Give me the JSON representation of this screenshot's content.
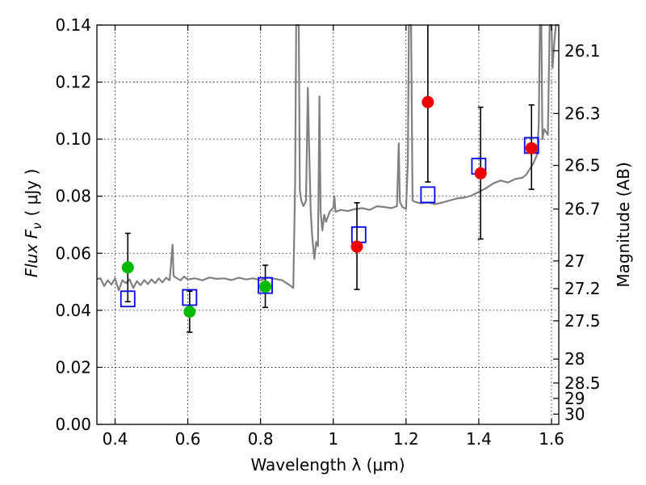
{
  "chart_data": {
    "type": "scatter",
    "xlabel": "Wavelength  λ (μm)",
    "ylabel": "Flux  F",
    "ylabel_sub": "ν",
    "ylabel_unit": "( μJy )",
    "y2label": "Magnitude (AB)",
    "xlim": [
      0.35,
      1.62
    ],
    "ylim": [
      0.0,
      0.14
    ],
    "grid": true,
    "x_ticks": [
      0.4,
      0.6,
      0.8,
      1.0,
      1.2,
      1.4,
      1.6
    ],
    "x_tick_labels": [
      "0.4",
      "0.6",
      "0.8",
      "1",
      "1.2",
      "1.4",
      "1.6"
    ],
    "y_ticks": [
      0.0,
      0.02,
      0.04,
      0.06,
      0.08,
      0.1,
      0.12,
      0.14
    ],
    "y_tick_labels": [
      "0.00",
      "0.02",
      "0.04",
      "0.06",
      "0.08",
      "0.10",
      "0.12",
      "0.14"
    ],
    "mag_ticks": [
      {
        "label": "26.1",
        "flux": 0.131
      },
      {
        "label": "26.3",
        "flux": 0.109
      },
      {
        "label": "26.5",
        "flux": 0.0908
      },
      {
        "label": "26.7",
        "flux": 0.0755
      },
      {
        "label": "27",
        "flux": 0.0573
      },
      {
        "label": "27.2",
        "flux": 0.0476
      },
      {
        "label": "27.5",
        "flux": 0.0363
      },
      {
        "label": "28",
        "flux": 0.0229
      },
      {
        "label": "28.5",
        "flux": 0.0145
      },
      {
        "label": "29",
        "flux": 0.0091
      },
      {
        "label": "30",
        "flux": 0.0036
      }
    ],
    "model_spectrum": {
      "color": "#808080",
      "points": [
        [
          0.35,
          0.051
        ],
        [
          0.36,
          0.0512
        ],
        [
          0.37,
          0.0485
        ],
        [
          0.38,
          0.0505
        ],
        [
          0.39,
          0.049
        ],
        [
          0.4,
          0.0512
        ],
        [
          0.41,
          0.047
        ],
        [
          0.42,
          0.0505
        ],
        [
          0.43,
          0.0495
        ],
        [
          0.44,
          0.0508
        ],
        [
          0.45,
          0.0478
        ],
        [
          0.46,
          0.0502
        ],
        [
          0.47,
          0.0488
        ],
        [
          0.48,
          0.0506
        ],
        [
          0.49,
          0.0492
        ],
        [
          0.5,
          0.0508
        ],
        [
          0.51,
          0.0495
        ],
        [
          0.52,
          0.0512
        ],
        [
          0.53,
          0.0498
        ],
        [
          0.54,
          0.0514
        ],
        [
          0.55,
          0.0505
        ],
        [
          0.555,
          0.058
        ],
        [
          0.558,
          0.063
        ],
        [
          0.561,
          0.052
        ],
        [
          0.57,
          0.0512
        ],
        [
          0.58,
          0.0505
        ],
        [
          0.59,
          0.0518
        ],
        [
          0.6,
          0.0508
        ],
        [
          0.62,
          0.0512
        ],
        [
          0.64,
          0.0505
        ],
        [
          0.66,
          0.0515
        ],
        [
          0.68,
          0.051
        ],
        [
          0.7,
          0.0512
        ],
        [
          0.72,
          0.0506
        ],
        [
          0.74,
          0.0514
        ],
        [
          0.76,
          0.0508
        ],
        [
          0.78,
          0.0512
        ],
        [
          0.8,
          0.0505
        ],
        [
          0.82,
          0.0515
        ],
        [
          0.84,
          0.051
        ],
        [
          0.86,
          0.0505
        ],
        [
          0.88,
          0.0488
        ],
        [
          0.89,
          0.0478
        ],
        [
          0.895,
          0.085
        ],
        [
          0.898,
          0.14
        ],
        [
          0.905,
          0.14
        ],
        [
          0.908,
          0.082
        ],
        [
          0.912,
          0.0785
        ],
        [
          0.918,
          0.0765
        ],
        [
          0.925,
          0.0785
        ],
        [
          0.93,
          0.118
        ],
        [
          0.934,
          0.095
        ],
        [
          0.938,
          0.0745
        ],
        [
          0.942,
          0.066
        ],
        [
          0.948,
          0.058
        ],
        [
          0.953,
          0.064
        ],
        [
          0.958,
          0.0625
        ],
        [
          0.962,
          0.115
        ],
        [
          0.965,
          0.075
        ],
        [
          0.97,
          0.068
        ],
        [
          0.975,
          0.0735
        ],
        [
          0.98,
          0.071
        ],
        [
          0.99,
          0.0745
        ],
        [
          1.0,
          0.076
        ],
        [
          1.003,
          0.08
        ],
        [
          1.006,
          0.0745
        ],
        [
          1.02,
          0.0752
        ],
        [
          1.04,
          0.0748
        ],
        [
          1.06,
          0.0755
        ],
        [
          1.08,
          0.0758
        ],
        [
          1.1,
          0.0752
        ],
        [
          1.12,
          0.0765
        ],
        [
          1.14,
          0.0762
        ],
        [
          1.16,
          0.0758
        ],
        [
          1.175,
          0.0765
        ],
        [
          1.18,
          0.0985
        ],
        [
          1.183,
          0.078
        ],
        [
          1.19,
          0.0762
        ],
        [
          1.2,
          0.0755
        ],
        [
          1.205,
          0.092
        ],
        [
          1.208,
          0.14
        ],
        [
          1.214,
          0.14
        ],
        [
          1.218,
          0.0785
        ],
        [
          1.225,
          0.078
        ],
        [
          1.24,
          0.0775
        ],
        [
          1.26,
          0.0778
        ],
        [
          1.28,
          0.0772
        ],
        [
          1.3,
          0.0778
        ],
        [
          1.32,
          0.0785
        ],
        [
          1.34,
          0.0792
        ],
        [
          1.36,
          0.0795
        ],
        [
          1.38,
          0.0802
        ],
        [
          1.4,
          0.0815
        ],
        [
          1.42,
          0.0828
        ],
        [
          1.44,
          0.0845
        ],
        [
          1.46,
          0.0855
        ],
        [
          1.48,
          0.0848
        ],
        [
          1.5,
          0.086
        ],
        [
          1.52,
          0.0865
        ],
        [
          1.53,
          0.0875
        ],
        [
          1.54,
          0.0895
        ],
        [
          1.55,
          0.0915
        ],
        [
          1.56,
          0.0945
        ],
        [
          1.565,
          0.105
        ],
        [
          1.568,
          0.14
        ],
        [
          1.572,
          0.14
        ],
        [
          1.575,
          0.1
        ],
        [
          1.58,
          0.1035
        ],
        [
          1.59,
          0.1015
        ],
        [
          1.595,
          0.14
        ],
        [
          1.6,
          0.14
        ],
        [
          1.603,
          0.125
        ],
        [
          1.608,
          0.1345
        ],
        [
          1.612,
          0.14
        ],
        [
          1.62,
          0.14
        ]
      ]
    },
    "error_bars": [
      {
        "x": 0.435,
        "low": 0.043,
        "high": 0.067
      },
      {
        "x": 0.605,
        "low": 0.0323,
        "high": 0.0467
      },
      {
        "x": 0.813,
        "low": 0.041,
        "high": 0.0558
      },
      {
        "x": 1.065,
        "low": 0.0473,
        "high": 0.0777
      },
      {
        "x": 1.26,
        "low": 0.085,
        "high": 0.14
      },
      {
        "x": 1.405,
        "low": 0.065,
        "high": 0.1112
      },
      {
        "x": 1.545,
        "low": 0.0824,
        "high": 0.112
      }
    ],
    "observed_points": [
      {
        "x": 0.435,
        "y": 0.055,
        "color": "#00bb00"
      },
      {
        "x": 0.605,
        "y": 0.0395,
        "color": "#00bb00"
      },
      {
        "x": 0.813,
        "y": 0.0483,
        "color": "#00bb00"
      },
      {
        "x": 1.065,
        "y": 0.0623,
        "color": "#ee0000"
      },
      {
        "x": 1.26,
        "y": 0.113,
        "color": "#ee0000"
      },
      {
        "x": 1.405,
        "y": 0.088,
        "color": "#ee0000"
      },
      {
        "x": 1.545,
        "y": 0.0968,
        "color": "#ee0000"
      }
    ],
    "model_points": {
      "color": "#0000ee",
      "points": [
        {
          "x": 0.435,
          "y": 0.044
        },
        {
          "x": 0.605,
          "y": 0.0445
        },
        {
          "x": 0.813,
          "y": 0.0487
        },
        {
          "x": 1.07,
          "y": 0.0665
        },
        {
          "x": 1.26,
          "y": 0.0805
        },
        {
          "x": 1.4,
          "y": 0.0905
        },
        {
          "x": 1.545,
          "y": 0.0978
        }
      ]
    }
  }
}
